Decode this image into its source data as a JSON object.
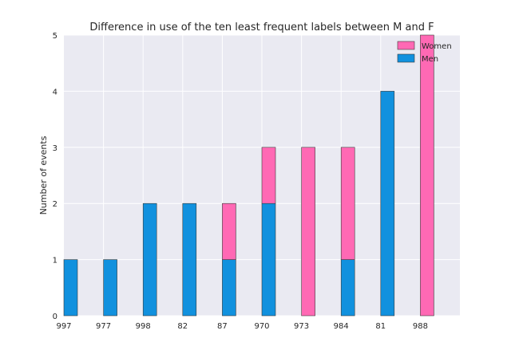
{
  "chart_data": {
    "type": "bar",
    "stacked": true,
    "title": "Difference in use of the ten least frequent labels between M and F",
    "xlabel": "",
    "ylabel": "Number of events",
    "categories": [
      "997",
      "977",
      "998",
      "82",
      "87",
      "970",
      "973",
      "984",
      "81",
      "988"
    ],
    "series": [
      {
        "name": "Men",
        "values": [
          1,
          1,
          2,
          2,
          1,
          2,
          0,
          1,
          4,
          0
        ],
        "color": "#1191de"
      },
      {
        "name": "Women",
        "values": [
          0,
          0,
          0,
          0,
          1,
          1,
          3,
          2,
          0,
          5
        ],
        "color": "#ff69b4"
      }
    ],
    "legend_order": [
      "Women",
      "Men"
    ],
    "ylim": [
      0,
      5
    ],
    "yticks": [
      0,
      1,
      2,
      3,
      4,
      5
    ],
    "grid": true,
    "legend_position": "top-right",
    "background_color": "#eaeaf2",
    "grid_color": "#ffffff"
  }
}
